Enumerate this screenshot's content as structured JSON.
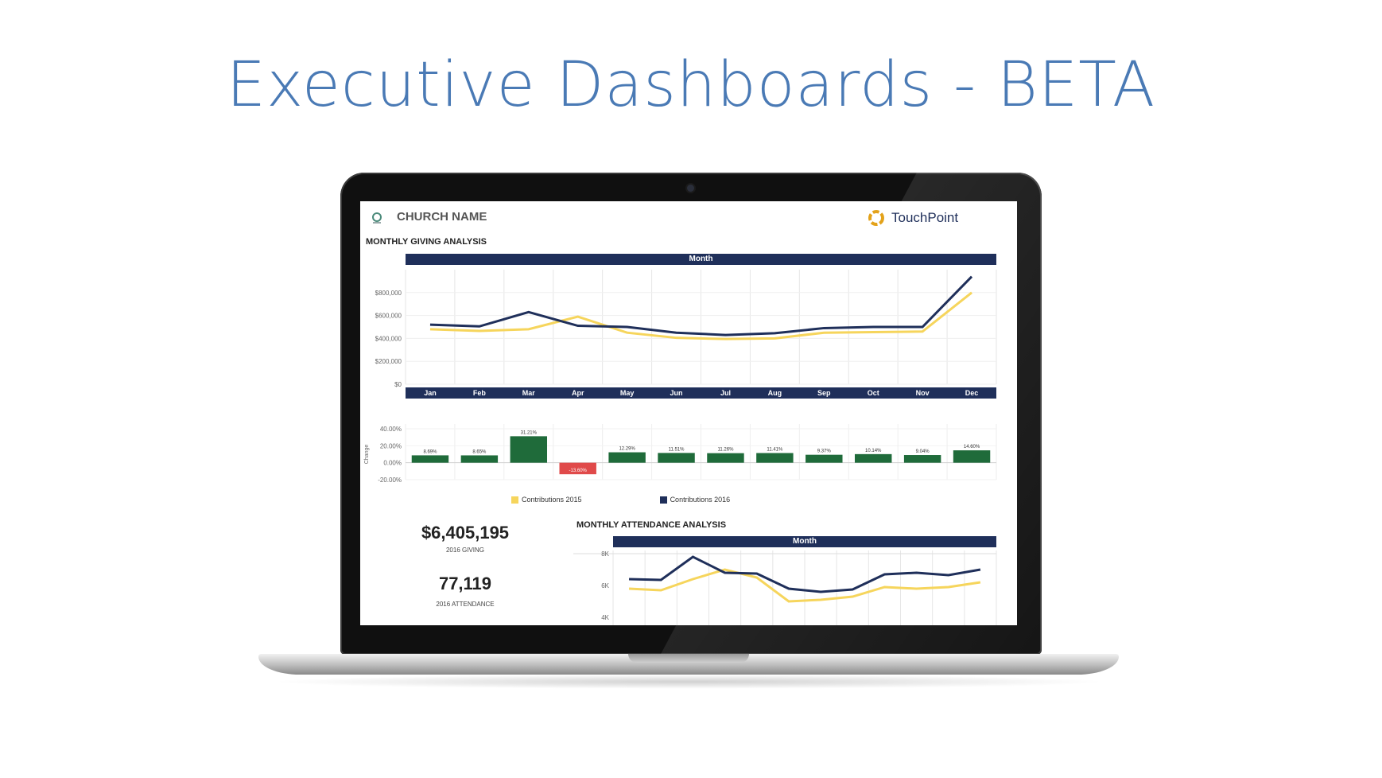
{
  "slide_title": "Executive Dashboards - BETA",
  "colors": {
    "title": "#4a7ab5",
    "navy": "#1f2f5a",
    "yellow": "#f6d55c",
    "green": "#1f6b3a",
    "red": "#e04a4a"
  },
  "dashboard": {
    "church_name": "CHURCH NAME",
    "brand": "TouchPoint",
    "giving_section": "MONTHLY GIVING ANALYSIS",
    "attendance_section": "MONTHLY ATTENDANCE ANALYSIS",
    "month_header": "Month",
    "change_axis_label": "Change",
    "legend": [
      "Contributions 2015",
      "Contributions 2016"
    ],
    "kpis": [
      {
        "value": "$6,405,195",
        "label": "2016 GIVING"
      },
      {
        "value": "77,119",
        "label": "2016 ATTENDANCE"
      }
    ]
  },
  "chart_data": [
    {
      "type": "line",
      "title": "MONTHLY GIVING ANALYSIS",
      "categories": [
        "Jan",
        "Feb",
        "Mar",
        "Apr",
        "May",
        "Jun",
        "Jul",
        "Aug",
        "Sep",
        "Oct",
        "Nov",
        "Dec"
      ],
      "series": [
        {
          "name": "Contributions 2015",
          "values": [
            480000,
            465000,
            480000,
            590000,
            450000,
            405000,
            395000,
            400000,
            450000,
            455000,
            460000,
            800000
          ]
        },
        {
          "name": "Contributions 2016",
          "values": [
            520000,
            505000,
            630000,
            510000,
            500000,
            450000,
            430000,
            445000,
            490000,
            500000,
            500000,
            940000
          ]
        }
      ],
      "ylim": [
        0,
        1000000
      ],
      "yticks": [
        "$0",
        "$200,000",
        "$400,000",
        "$600,000",
        "$800,000"
      ],
      "ytick_values": [
        0,
        200000,
        400000,
        600000,
        800000
      ]
    },
    {
      "type": "bar",
      "ylabel": "Change",
      "categories": [
        "Jan",
        "Feb",
        "Mar",
        "Apr",
        "May",
        "Jun",
        "Jul",
        "Aug",
        "Sep",
        "Oct",
        "Nov",
        "Dec"
      ],
      "values": [
        8.69,
        8.65,
        31.21,
        -13.6,
        12.29,
        11.51,
        11.26,
        11.41,
        9.37,
        10.14,
        9.04,
        14.6
      ],
      "labels": [
        "8.69%",
        "8.65%",
        "31.21%",
        "-13.60%",
        "12.29%",
        "11.51%",
        "11.26%",
        "11.41%",
        "9.37%",
        "10.14%",
        "9.04%",
        "14.60%"
      ],
      "ylim": [
        -20,
        40
      ],
      "yticks": [
        "40.00%",
        "20.00%",
        "0.00%",
        "-20.00%"
      ],
      "ytick_values": [
        40,
        20,
        0,
        -20
      ]
    },
    {
      "type": "line",
      "title": "MONTHLY ATTENDANCE ANALYSIS",
      "series": [
        {
          "name": "Contributions 2015",
          "values": [
            5800,
            5700,
            6400,
            7000,
            6500,
            5000,
            5100,
            5300,
            5900,
            5800,
            5900,
            6200
          ]
        },
        {
          "name": "Contributions 2016",
          "values": [
            6400,
            6350,
            7800,
            6800,
            6750,
            5800,
            5600,
            5750,
            6700,
            6800,
            6650,
            7000
          ]
        }
      ],
      "ylim": [
        3500,
        8200
      ],
      "yticks": [
        "8K",
        "6K",
        "4K"
      ],
      "ytick_values": [
        8000,
        6000,
        4000
      ]
    }
  ]
}
